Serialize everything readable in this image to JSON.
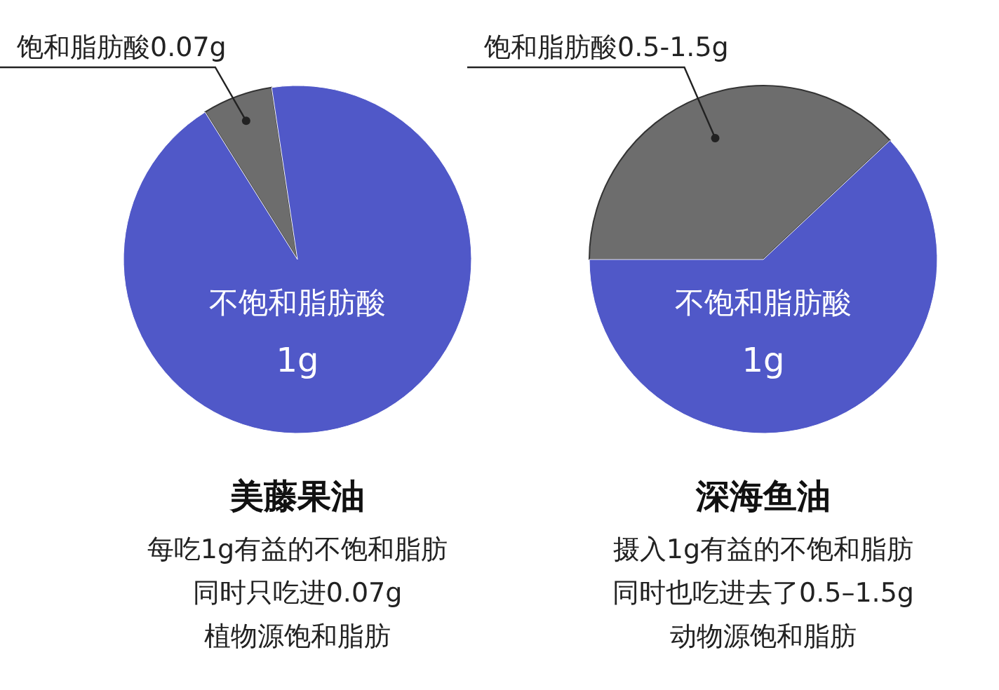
{
  "chart_data": [
    {
      "type": "pie",
      "title": "美藤果油",
      "categories": [
        "饱和脂肪酸0.07g",
        "不饱和脂肪酸\n1g"
      ],
      "values": [
        0.07,
        1
      ],
      "colors": [
        "#6d6d6d",
        "#5058c8"
      ],
      "annotations": [
        "每吃1g有益的不饱和脂肪",
        "同时只吃进0.07g",
        "植物源饱和脂肪"
      ]
    },
    {
      "type": "pie",
      "title": "深海鱼油",
      "categories": [
        "饱和脂肪酸0.5-1.5g",
        "不饱和脂肪酸\n1g"
      ],
      "values": [
        38,
        62
      ],
      "colors": [
        "#6d6d6d",
        "#5058c8"
      ],
      "annotations": [
        "摄入1g有益的不饱和脂肪",
        "同时也吃进去了0.5–1.5g",
        "动物源饱和脂肪"
      ]
    }
  ]
}
